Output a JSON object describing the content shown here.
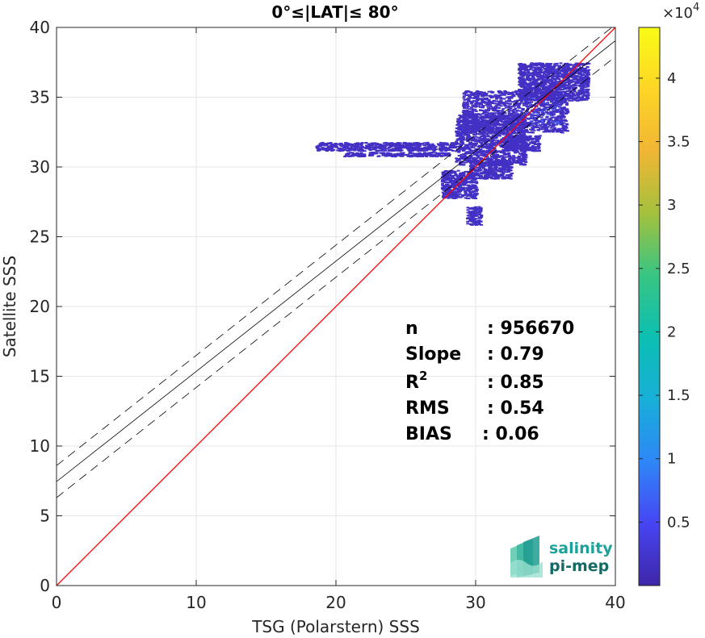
{
  "chart_data": {
    "type": "scatter",
    "title": "0°≤|LAT|≤ 80°",
    "xlabel": "TSG (Polarstern) SSS",
    "ylabel": "Satellite SSS",
    "xlim": [
      0,
      40
    ],
    "ylim": [
      0,
      40
    ],
    "xticks": [
      0,
      10,
      20,
      30,
      40
    ],
    "yticks": [
      0,
      5,
      10,
      15,
      20,
      25,
      30,
      35,
      40
    ],
    "grid": true,
    "identity_line": {
      "x": [
        0,
        40
      ],
      "y": [
        0,
        40
      ],
      "color": "#ff0000"
    },
    "fit_line": {
      "intercept": 7.45,
      "slope": 0.79,
      "color": "#000000"
    },
    "fit_band": {
      "offset": 1.15
    },
    "density_regions": [
      {
        "x": [
          18.5,
          28.5
        ],
        "y": [
          31.2,
          31.8
        ]
      },
      {
        "x": [
          20.5,
          28
        ],
        "y": [
          30.8,
          31.1
        ]
      },
      {
        "x": [
          28.5,
          33.5
        ],
        "y": [
          30.2,
          33.8
        ]
      },
      {
        "x": [
          29,
          36.5
        ],
        "y": [
          32.5,
          35.5
        ]
      },
      {
        "x": [
          33,
          38
        ],
        "y": [
          34.8,
          37.5
        ]
      },
      {
        "x": [
          29.5,
          32.5
        ],
        "y": [
          29.2,
          30.5
        ]
      },
      {
        "x": [
          27.5,
          30
        ],
        "y": [
          27.8,
          29.8
        ]
      },
      {
        "x": [
          29.3,
          30.3
        ],
        "y": [
          25.9,
          27.2
        ]
      },
      {
        "x": [
          32,
          34.5
        ],
        "y": [
          31.2,
          32.3
        ]
      }
    ],
    "colorbar": {
      "multiplier": "×10",
      "exponent": "4",
      "ticks": [
        0.5,
        1,
        1.5,
        2,
        2.5,
        3,
        3.5,
        4
      ],
      "tick_labels": [
        "0.5",
        "1",
        "1.5",
        "2",
        "2.5",
        "3",
        "3.5",
        "4"
      ],
      "range": [
        0,
        4.4
      ],
      "colormap": [
        "#3e26a8",
        "#4745f3",
        "#2e87f7",
        "#18afd9",
        "#0bbfb2",
        "#38c583",
        "#a4c13d",
        "#f1b634",
        "#fdd526",
        "#f9fb15"
      ]
    },
    "stats": [
      {
        "name": "n",
        "value": ": 956670"
      },
      {
        "name": "Slope",
        "value": ": 0.79"
      },
      {
        "name": "R",
        "sup": "2",
        "value": ": 0.85"
      },
      {
        "name": "RMS",
        "value": ": 0.54"
      },
      {
        "name": "BIAS",
        "value": ": 0.06"
      }
    ]
  },
  "logo": {
    "line1": "salinity",
    "line2": "pi-mep",
    "color1": "#1aa39a",
    "color2": "#146b66"
  }
}
